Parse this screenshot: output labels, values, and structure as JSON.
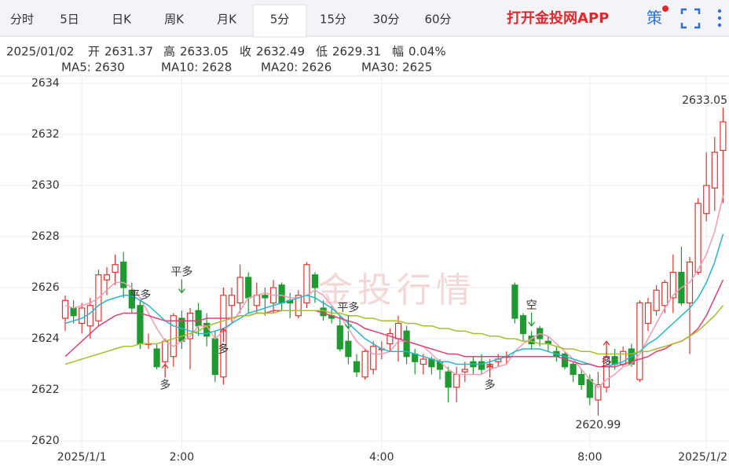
{
  "tabs": [
    "分时",
    "5日",
    "日K",
    "周K",
    "月K",
    "5分",
    "15分",
    "30分",
    "60分"
  ],
  "selected_tab": 5,
  "app_link": "打开金投网APP",
  "strategy_icon": "策",
  "info": {
    "date": "2025/01/02",
    "open_label": "开",
    "high_label": "高",
    "close_label": "收",
    "low_label": "低",
    "change_label": "幅",
    "change": "0.04%"
  },
  "chart_data": {
    "type": "candlestick",
    "watermark": "金投行情",
    "categories": [
      null,
      null,
      "2025/1/1",
      null,
      null,
      null,
      null,
      null,
      null,
      null,
      null,
      null,
      null,
      null,
      "2:00",
      null,
      null,
      null,
      null,
      null,
      null,
      null,
      null,
      null,
      null,
      null,
      null,
      null,
      null,
      null,
      null,
      null,
      null,
      null,
      null,
      null,
      null,
      null,
      "4:00",
      null,
      null,
      null,
      null,
      null,
      null,
      null,
      null,
      null,
      null,
      null,
      null,
      null,
      null,
      null,
      null,
      null,
      null,
      null,
      null,
      null,
      null,
      null,
      null,
      "8:00",
      null,
      null,
      null,
      null,
      null,
      null,
      null,
      null,
      null,
      null,
      null,
      null,
      null,
      "2025/1/2",
      null,
      null
    ],
    "open": [
      2624.8,
      2625.2,
      2624.6,
      2624.5,
      2624.7,
      2626.3,
      2626.6,
      2627.0,
      2625.9,
      2625.3,
      2623.8,
      2623.6,
      2623.1,
      2623.3,
      2624.8,
      2624.0,
      2625.1,
      2624.6,
      2624.0,
      2622.5,
      2625.3,
      2625.4,
      2626.4,
      2625.3,
      2625.7,
      2625.4,
      2626.1,
      2625.5,
      2624.9,
      2625.4,
      2626.5,
      2625.2,
      2624.9,
      2624.5,
      2623.9,
      2623.1,
      2622.5,
      2622.8,
      2623.6,
      2623.8,
      2624.0,
      2624.3,
      2623.4,
      2623.0,
      2623.2,
      2623.1,
      2622.7,
      2622.1,
      2622.7,
      2623.1,
      2623.1,
      2622.9,
      2623.1,
      2623.3,
      2626.1,
      2624.9,
      2624.1,
      2624.4,
      2623.9,
      2623.5,
      2623.4,
      2623.0,
      2622.6,
      2622.4,
      2621.6,
      2622.1,
      2623.3,
      2623.0,
      2623.6,
      2622.4,
      2624.6,
      2625.1,
      2625.3,
      2625.6,
      2626.6,
      2625.4,
      2626.6,
      2628.9,
      2629.9,
      2631.37
    ],
    "high": [
      2625.7,
      2625.5,
      2625.4,
      2625.6,
      2626.7,
      2626.8,
      2627.3,
      2627.4,
      2626.2,
      2625.5,
      2624.2,
      2623.8,
      2624.0,
      2625.0,
      2625.1,
      2625.2,
      2625.4,
      2625.0,
      2624.3,
      2626.0,
      2626.0,
      2626.9,
      2626.6,
      2626.2,
      2626.0,
      2626.3,
      2626.2,
      2625.8,
      2625.9,
      2627.0,
      2626.6,
      2625.5,
      2625.3,
      2624.9,
      2624.3,
      2623.4,
      2623.6,
      2623.9,
      2623.9,
      2624.4,
      2624.9,
      2624.5,
      2623.6,
      2623.4,
      2623.3,
      2623.2,
      2622.9,
      2622.9,
      2623.1,
      2623.3,
      2623.4,
      2623.2,
      2623.4,
      2623.5,
      2626.2,
      2625.0,
      2624.3,
      2624.5,
      2624.1,
      2623.7,
      2623.5,
      2623.1,
      2622.8,
      2622.6,
      2622.7,
      2623.5,
      2623.6,
      2623.7,
      2623.8,
      2625.5,
      2625.6,
      2626.1,
      2626.3,
      2627.3,
      2627.6,
      2627.2,
      2629.5,
      2631.3,
      2631.9,
      2633.05
    ],
    "low": [
      2624.3,
      2624.6,
      2624.2,
      2624.0,
      2624.5,
      2625.7,
      2626.1,
      2625.6,
      2625.0,
      2623.6,
      2623.6,
      2622.8,
      2622.9,
      2622.9,
      2623.6,
      2622.8,
      2624.1,
      2623.7,
      2622.3,
      2622.2,
      2624.6,
      2625.0,
      2625.0,
      2625.0,
      2624.9,
      2625.0,
      2625.1,
      2624.8,
      2624.8,
      2625.2,
      2625.4,
      2624.7,
      2624.6,
      2623.5,
      2623.0,
      2622.5,
      2622.4,
      2622.6,
      2623.2,
      2623.5,
      2623.1,
      2623.0,
      2622.6,
      2622.6,
      2622.6,
      2622.4,
      2621.5,
      2621.5,
      2622.3,
      2622.6,
      2622.6,
      2622.7,
      2622.9,
      2623.0,
      2624.6,
      2623.9,
      2623.6,
      2623.7,
      2623.5,
      2623.1,
      2622.8,
      2622.3,
      2622.0,
      2621.4,
      2620.99,
      2621.9,
      2622.8,
      2622.9,
      2622.9,
      2622.3,
      2624.3,
      2624.9,
      2625.0,
      2625.0,
      2625.3,
      2623.4,
      2626.5,
      2628.6,
      2629.0,
      2629.31
    ],
    "close": [
      2625.5,
      2624.9,
      2625.2,
      2625.3,
      2626.5,
      2626.5,
      2626.9,
      2626.0,
      2625.2,
      2623.8,
      2623.8,
      2622.9,
      2623.9,
      2624.9,
      2623.9,
      2625.0,
      2624.5,
      2624.1,
      2622.6,
      2625.7,
      2625.7,
      2626.4,
      2625.6,
      2625.7,
      2625.6,
      2626.0,
      2625.4,
      2625.4,
      2625.7,
      2626.9,
      2626.0,
      2624.9,
      2624.8,
      2623.6,
      2623.3,
      2622.7,
      2623.5,
      2623.7,
      2623.6,
      2624.2,
      2624.6,
      2623.3,
      2623.1,
      2623.2,
      2622.9,
      2622.8,
      2622.1,
      2622.6,
      2622.8,
      2622.9,
      2622.8,
      2623.0,
      2623.2,
      2623.3,
      2624.8,
      2624.2,
      2623.8,
      2624.0,
      2623.8,
      2623.3,
      2622.9,
      2622.6,
      2622.2,
      2621.7,
      2622.2,
      2623.3,
      2623.0,
      2623.5,
      2623.0,
      2625.4,
      2625.4,
      2625.9,
      2626.2,
      2626.6,
      2625.4,
      2627.0,
      2629.3,
      2630.0,
      2631.3,
      2632.49
    ],
    "up_color": "#e5342f",
    "down_color": "#1f9a30",
    "series": [
      {
        "name": "MA5",
        "legend": "MA5: 2630",
        "color": "#f29bb5",
        "values": [
          2625.3,
          2625.2,
          2625.3,
          2625.4,
          2625.6,
          2625.9,
          2626.2,
          2626.2,
          2626.0,
          2625.6,
          2625.0,
          2624.4,
          2623.9,
          2623.7,
          2623.9,
          2624.1,
          2624.5,
          2624.5,
          2624.0,
          2624.3,
          2624.6,
          2625.1,
          2625.6,
          2625.7,
          2625.8,
          2625.7,
          2625.7,
          2625.6,
          2625.6,
          2625.7,
          2625.9,
          2625.7,
          2625.3,
          2624.9,
          2624.4,
          2623.9,
          2623.6,
          2623.4,
          2623.4,
          2623.5,
          2623.9,
          2623.9,
          2623.8,
          2623.7,
          2623.4,
          2623.1,
          2622.8,
          2622.6,
          2622.6,
          2622.6,
          2622.6,
          2622.8,
          2622.9,
          2623.0,
          2623.5,
          2623.8,
          2624.0,
          2624.2,
          2624.1,
          2623.8,
          2623.5,
          2623.2,
          2622.8,
          2622.4,
          2622.1,
          2622.4,
          2622.6,
          2622.9,
          2623.0,
          2623.4,
          2624.0,
          2624.6,
          2625.2,
          2625.7,
          2626.0,
          2626.2,
          2626.7,
          2627.3,
          2628.2,
          2629.6
        ]
      },
      {
        "name": "MA10",
        "legend": "MA10: 2628",
        "color": "#22b8cf",
        "values": [
          2624.6,
          2624.7,
          2624.8,
          2625.0,
          2625.3,
          2625.5,
          2625.6,
          2625.7,
          2625.7,
          2625.5,
          2625.3,
          2625.0,
          2624.7,
          2624.5,
          2624.4,
          2624.3,
          2624.2,
          2624.2,
          2624.3,
          2624.4,
          2624.6,
          2624.8,
          2625.0,
          2625.1,
          2625.2,
          2625.3,
          2625.4,
          2625.5,
          2625.6,
          2625.7,
          2625.6,
          2625.4,
          2625.2,
          2624.9,
          2624.6,
          2624.3,
          2624.0,
          2623.8,
          2623.6,
          2623.5,
          2623.5,
          2623.5,
          2623.4,
          2623.3,
          2623.2,
          2623.1,
          2623.1,
          2623.0,
          2623.0,
          2623.0,
          2623.0,
          2623.1,
          2623.2,
          2623.3,
          2623.5,
          2623.6,
          2623.6,
          2623.6,
          2623.5,
          2623.4,
          2623.3,
          2623.2,
          2623.1,
          2623.0,
          2622.9,
          2622.9,
          2623.0,
          2623.1,
          2623.3,
          2623.5,
          2623.8,
          2624.0,
          2624.3,
          2624.6,
          2624.9,
          2625.2,
          2625.6,
          2626.2,
          2627.0,
          2628.1
        ]
      },
      {
        "name": "MA20",
        "legend": "MA20: 2626",
        "color": "#e0407a",
        "values": [
          2623.3,
          2623.6,
          2623.9,
          2624.2,
          2624.5,
          2624.7,
          2624.9,
          2625.0,
          2625.0,
          2625.0,
          2624.9,
          2624.8,
          2624.7,
          2624.7,
          2624.7,
          2624.7,
          2624.7,
          2624.8,
          2624.8,
          2624.8,
          2624.8,
          2624.9,
          2624.9,
          2625.0,
          2625.0,
          2625.1,
          2625.1,
          2625.1,
          2625.1,
          2625.1,
          2625.1,
          2625.0,
          2624.9,
          2624.8,
          2624.7,
          2624.6,
          2624.4,
          2624.3,
          2624.2,
          2624.1,
          2624.0,
          2623.9,
          2623.8,
          2623.7,
          2623.6,
          2623.5,
          2623.4,
          2623.4,
          2623.3,
          2623.3,
          2623.3,
          2623.3,
          2623.3,
          2623.3,
          2623.3,
          2623.3,
          2623.3,
          2623.3,
          2623.3,
          2623.3,
          2623.2,
          2623.1,
          2623.0,
          2623.0,
          2622.9,
          2622.9,
          2622.9,
          2623.0,
          2623.1,
          2623.2,
          2623.3,
          2623.5,
          2623.6,
          2623.8,
          2623.9,
          2624.1,
          2624.4,
          2624.9,
          2625.6,
          2626.3
        ]
      },
      {
        "name": "MA30",
        "legend": "MA30: 2625",
        "color": "#a8bd2a",
        "values": [
          2623.0,
          2623.1,
          2623.2,
          2623.3,
          2623.4,
          2623.5,
          2623.6,
          2623.7,
          2623.7,
          2623.8,
          2623.8,
          2623.8,
          2623.9,
          2624.0,
          2624.1,
          2624.2,
          2624.3,
          2624.5,
          2624.6,
          2624.7,
          2624.8,
          2624.9,
          2624.9,
          2625.0,
          2625.0,
          2625.0,
          2625.1,
          2625.1,
          2625.1,
          2625.1,
          2625.1,
          2625.1,
          2625.0,
          2625.0,
          2624.9,
          2624.9,
          2624.8,
          2624.8,
          2624.7,
          2624.7,
          2624.7,
          2624.6,
          2624.6,
          2624.5,
          2624.5,
          2624.4,
          2624.4,
          2624.3,
          2624.3,
          2624.2,
          2624.2,
          2624.1,
          2624.1,
          2624.0,
          2624.0,
          2623.9,
          2623.9,
          2623.8,
          2623.8,
          2623.7,
          2623.6,
          2623.6,
          2623.5,
          2623.5,
          2623.4,
          2623.4,
          2623.4,
          2623.4,
          2623.4,
          2623.5,
          2623.5,
          2623.6,
          2623.7,
          2623.8,
          2623.9,
          2624.1,
          2624.3,
          2624.6,
          2624.9,
          2625.3
        ]
      }
    ],
    "annotations": [
      {
        "text": "平多",
        "x": 9,
        "y": 2624.9,
        "color": "#1f9a30",
        "dir": "down"
      },
      {
        "text": "平多",
        "x": 14,
        "y": 2625.8,
        "color": "#1f9a30",
        "dir": "down"
      },
      {
        "text": "多",
        "x": 12,
        "y": 2623.0,
        "color": "#e5342f",
        "dir": "up"
      },
      {
        "text": "多",
        "x": 19,
        "y": 2624.4,
        "color": "#e5342f",
        "dir": "up"
      },
      {
        "text": "平多",
        "x": 34,
        "y": 2624.4,
        "color": "#1f9a30",
        "dir": "down"
      },
      {
        "text": "多",
        "x": 51,
        "y": 2623.0,
        "color": "#e5342f",
        "dir": "up"
      },
      {
        "text": "空",
        "x": 56,
        "y": 2624.5,
        "color": "#1f9a30",
        "dir": "down"
      },
      {
        "text": "多",
        "x": 65,
        "y": 2623.9,
        "color": "#e5342f",
        "dir": "up"
      }
    ],
    "ylim": [
      2620,
      2634
    ],
    "yticks": [
      2620,
      2622,
      2624,
      2626,
      2628,
      2630,
      2632,
      2634
    ],
    "grid": true
  }
}
